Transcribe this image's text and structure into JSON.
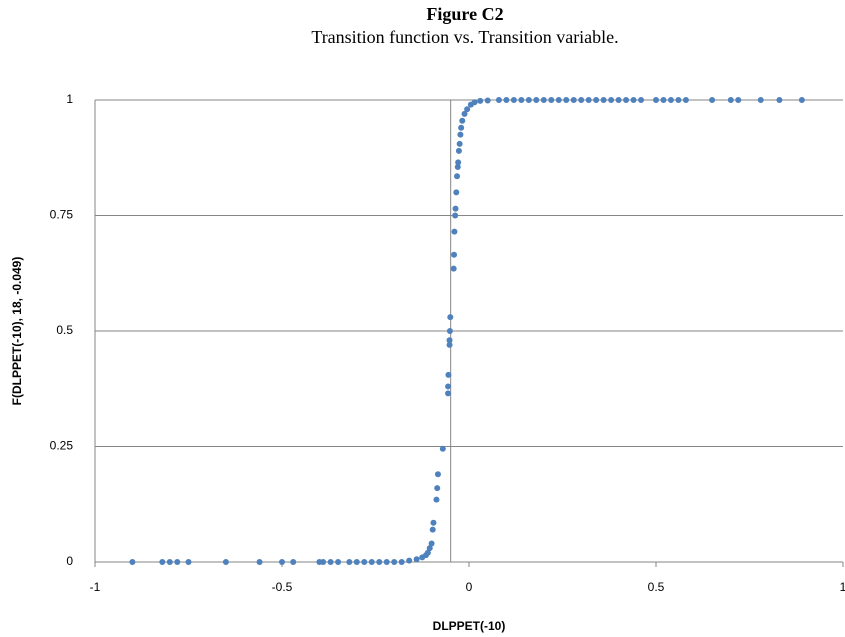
{
  "chart_data": {
    "type": "scatter",
    "title": "Figure C2",
    "subtitle": "Transition function vs. Transition variable.",
    "x_label": "DLPPET(-10)",
    "y_label": "F(DLPPET(-10), 18, -0.049)",
    "color": "#4f81bd",
    "xlim": [
      -1,
      1
    ],
    "xticks": [
      -1,
      -0.5,
      0,
      0.5,
      1
    ],
    "ylim": [
      0,
      1
    ],
    "yticks": [
      0,
      0.25,
      0.5,
      0.75,
      1
    ],
    "grid": true,
    "vline": -0.049,
    "x": [
      -0.9,
      -0.82,
      -0.8,
      -0.78,
      -0.75,
      -0.65,
      -0.56,
      -0.5,
      -0.47,
      -0.4,
      -0.39,
      -0.37,
      -0.35,
      -0.32,
      -0.3,
      -0.28,
      -0.26,
      -0.24,
      -0.22,
      -0.2,
      -0.18,
      -0.16,
      -0.14,
      -0.125,
      -0.115,
      -0.11,
      -0.105,
      -0.1,
      -0.097,
      -0.095,
      -0.087,
      -0.085,
      -0.083,
      -0.07,
      -0.056,
      -0.056,
      -0.055,
      -0.052,
      -0.052,
      -0.051,
      -0.05,
      -0.041,
      -0.04,
      -0.039,
      -0.037,
      -0.036,
      -0.034,
      -0.032,
      -0.03,
      -0.029,
      -0.027,
      -0.025,
      -0.023,
      -0.021,
      -0.018,
      -0.012,
      -0.005,
      0.005,
      0.015,
      0.03,
      0.05,
      0.08,
      0.1,
      0.12,
      0.14,
      0.16,
      0.18,
      0.2,
      0.22,
      0.24,
      0.26,
      0.28,
      0.3,
      0.32,
      0.34,
      0.36,
      0.38,
      0.4,
      0.42,
      0.44,
      0.46,
      0.5,
      0.52,
      0.54,
      0.56,
      0.58,
      0.65,
      0.7,
      0.72,
      0.78,
      0.83,
      0.89
    ],
    "values": [
      0,
      0,
      0,
      0,
      0,
      0,
      0,
      0,
      0,
      0,
      0,
      0,
      0,
      0,
      0,
      0,
      0,
      0,
      0,
      0,
      0,
      0.003,
      0.006,
      0.01,
      0.015,
      0.02,
      0.03,
      0.04,
      0.07,
      0.085,
      0.135,
      0.16,
      0.19,
      0.245,
      0.365,
      0.38,
      0.405,
      0.47,
      0.48,
      0.5,
      0.53,
      0.635,
      0.665,
      0.715,
      0.75,
      0.765,
      0.8,
      0.835,
      0.855,
      0.865,
      0.89,
      0.905,
      0.925,
      0.94,
      0.955,
      0.97,
      0.98,
      0.99,
      0.995,
      0.998,
      0.999,
      1,
      1,
      1,
      1,
      1,
      1,
      1,
      1,
      1,
      1,
      1,
      1,
      1,
      1,
      1,
      1,
      1,
      1,
      1,
      1,
      1,
      1,
      1,
      1,
      1,
      1,
      1,
      1,
      1,
      1,
      1
    ]
  }
}
